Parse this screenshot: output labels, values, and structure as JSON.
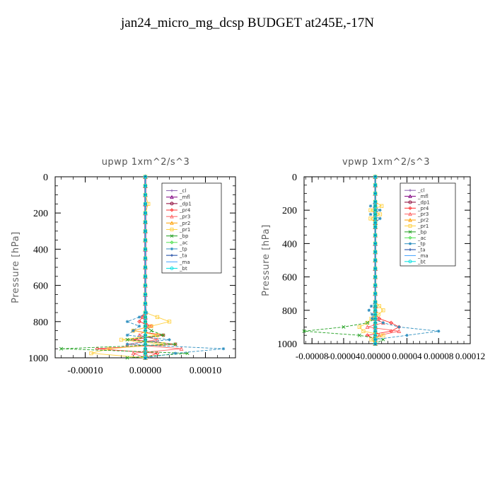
{
  "page": {
    "title": "jan24_micro_mg_dcsp  BUDGET at245E,-17N"
  },
  "chart_data": [
    {
      "type": "line",
      "title": "upwp   1xm^2/s^3",
      "xlabel": "",
      "ylabel": "Pressure [hPa]",
      "xlim": [
        -0.00015,
        0.00015
      ],
      "ylim": [
        1000,
        0
      ],
      "xticks": [
        -0.0001,
        0.0,
        0.0001
      ],
      "xtick_labels": [
        "-0.00010",
        "0.00000",
        "0.00010"
      ],
      "yticks": [
        0,
        200,
        400,
        600,
        800,
        1000
      ],
      "y": [
        0,
        50,
        100,
        150,
        200,
        250,
        300,
        350,
        400,
        450,
        500,
        550,
        600,
        650,
        700,
        750,
        775,
        800,
        825,
        850,
        875,
        900,
        925,
        950,
        975,
        1000
      ],
      "legend_position": "top-right",
      "series": [
        {
          "name": "_cl",
          "color": "#8b5fb0",
          "marker": "plus",
          "values": [
            0,
            0,
            0,
            0,
            0,
            0,
            0,
            0,
            0,
            0,
            0,
            0,
            0,
            0,
            0,
            0,
            0,
            0,
            0,
            0,
            0,
            0,
            0,
            0,
            0,
            0
          ]
        },
        {
          "name": "_mfl",
          "color": "#800080",
          "marker": "tri",
          "values": [
            0,
            0,
            0,
            0,
            0,
            0,
            0,
            0,
            0,
            0,
            0,
            0,
            0,
            0,
            0,
            0,
            0,
            0,
            0,
            0,
            0,
            0,
            0,
            0,
            0,
            0
          ]
        },
        {
          "name": "_dp1",
          "color": "#8b0033",
          "marker": "circle",
          "values": [
            0,
            0,
            0,
            0,
            0,
            0,
            0,
            0,
            0,
            0,
            0,
            0,
            0,
            0,
            0,
            0,
            0,
            0,
            0,
            0,
            0,
            0,
            0,
            0,
            0,
            0
          ]
        },
        {
          "name": "_pr4",
          "color": "#ff3030",
          "marker": "diamond",
          "values": [
            0,
            0,
            0,
            0,
            0,
            0,
            0,
            0,
            0,
            0,
            0,
            0,
            0,
            0,
            0,
            0,
            -5e-06,
            -1e-05,
            1e-05,
            -2e-05,
            3e-05,
            -2e-05,
            5e-05,
            -8e-05,
            2e-05,
            0
          ]
        },
        {
          "name": "_pr3",
          "color": "#ff6060",
          "marker": "tri",
          "values": [
            0,
            0,
            0,
            0,
            0,
            0,
            0,
            0,
            0,
            0,
            0,
            0,
            0,
            0,
            0,
            0,
            0,
            0,
            5e-06,
            0,
            -1e-05,
            2e-05,
            -3e-05,
            6e-05,
            -2e-05,
            0
          ]
        },
        {
          "name": "_pr2",
          "color": "#ffa000",
          "marker": "tri",
          "values": [
            0,
            0,
            0,
            0,
            0,
            0,
            0,
            0,
            0,
            0,
            0,
            0,
            0,
            0,
            0,
            0,
            0,
            0,
            0,
            0,
            0,
            0,
            0,
            0,
            0,
            0
          ]
        },
        {
          "name": "_pr1",
          "color": "#ffd040",
          "marker": "square",
          "values": [
            0,
            0,
            0,
            5e-06,
            0,
            0,
            0,
            0,
            0,
            0,
            0,
            0,
            0,
            0,
            0,
            0,
            2e-05,
            4e-05,
            1e-05,
            -2e-05,
            2e-05,
            -4e-05,
            3e-05,
            -6e-05,
            -9e-05,
            0
          ]
        },
        {
          "name": "_bp",
          "color": "#20a020",
          "marker": "x",
          "values": [
            0,
            0,
            0,
            0,
            0,
            0,
            0,
            0,
            0,
            0,
            0,
            0,
            0,
            0,
            0,
            0,
            0,
            0,
            0,
            1e-05,
            3e-05,
            -3e-05,
            5e-05,
            -0.00014,
            7e-05,
            -3e-05
          ]
        },
        {
          "name": "_ac",
          "color": "#50e050",
          "marker": "diamond",
          "values": [
            0,
            0,
            0,
            0,
            0,
            0,
            0,
            0,
            0,
            0,
            0,
            0,
            0,
            0,
            0,
            0,
            0,
            0,
            0,
            0,
            0,
            0,
            0,
            0,
            0,
            0
          ]
        },
        {
          "name": "_tp",
          "color": "#3090c0",
          "marker": "star",
          "values": [
            0,
            0,
            0,
            0,
            0,
            0,
            0,
            0,
            0,
            0,
            0,
            0,
            0,
            0,
            0,
            2e-06,
            -1e-05,
            -3e-05,
            -1e-05,
            -2e-05,
            -3e-05,
            4e-05,
            -3e-05,
            0.00013,
            5e-05,
            0
          ]
        },
        {
          "name": "_ta",
          "color": "#1040a0",
          "marker": "plus",
          "values": [
            0,
            0,
            0,
            0,
            0,
            0,
            0,
            0,
            0,
            0,
            0,
            0,
            0,
            0,
            0,
            0,
            0,
            0,
            0,
            0,
            0,
            0,
            0,
            0,
            0,
            0
          ]
        },
        {
          "name": "_ma",
          "color": "#40a0ff",
          "marker": "none",
          "values": [
            0,
            0,
            0,
            0,
            0,
            0,
            0,
            0,
            0,
            0,
            0,
            0,
            0,
            0,
            0,
            0,
            0,
            0,
            0,
            0,
            0,
            0,
            0,
            0,
            0,
            0
          ]
        },
        {
          "name": "_bt",
          "color": "#00e0e0",
          "marker": "circle",
          "values": [
            0,
            0,
            0,
            0,
            0,
            0,
            0,
            0,
            0,
            0,
            0,
            0,
            0,
            0,
            0,
            0,
            0,
            0,
            0,
            0,
            0,
            0,
            0,
            0,
            0,
            0
          ]
        }
      ]
    },
    {
      "type": "line",
      "title": "vpwp   1xm^2/s^3",
      "xlabel": "",
      "ylabel": "Pressure [hPa]",
      "xlim": [
        -9e-05,
        0.00012
      ],
      "ylim": [
        1000,
        0
      ],
      "xticks": [
        -8e-05,
        -4e-05,
        0.0,
        4e-05,
        8e-05,
        0.00012
      ],
      "xtick_labels": [
        "-0.00008",
        "-0.00004",
        "0.00000",
        "0.00004",
        "0.00008",
        "0.00012"
      ],
      "yticks": [
        0,
        200,
        400,
        600,
        800,
        1000
      ],
      "y": [
        0,
        50,
        100,
        150,
        175,
        200,
        225,
        250,
        275,
        300,
        350,
        400,
        450,
        500,
        550,
        600,
        650,
        700,
        750,
        775,
        800,
        825,
        850,
        875,
        900,
        925,
        950,
        975,
        1000
      ],
      "legend_position": "top-right",
      "series": [
        {
          "name": "_cl",
          "color": "#8b5fb0",
          "marker": "plus",
          "values": [
            0,
            0,
            0,
            0,
            0,
            0,
            0,
            0,
            0,
            0,
            0,
            0,
            0,
            0,
            0,
            0,
            0,
            0,
            0,
            0,
            0,
            0,
            0,
            0,
            0,
            0,
            0,
            0,
            0
          ]
        },
        {
          "name": "_mfl",
          "color": "#800080",
          "marker": "tri",
          "values": [
            0,
            0,
            0,
            0,
            0,
            0,
            0,
            0,
            0,
            0,
            0,
            0,
            0,
            0,
            0,
            0,
            0,
            0,
            0,
            0,
            0,
            0,
            0,
            0,
            0,
            0,
            0,
            0,
            0
          ]
        },
        {
          "name": "_dp1",
          "color": "#8b0033",
          "marker": "circle",
          "values": [
            0,
            0,
            0,
            0,
            0,
            0,
            0,
            0,
            0,
            0,
            0,
            0,
            0,
            0,
            0,
            0,
            0,
            0,
            0,
            0,
            0,
            0,
            0,
            0,
            0,
            0,
            0,
            0,
            0
          ]
        },
        {
          "name": "_pr4",
          "color": "#ff3030",
          "marker": "diamond",
          "values": [
            0,
            0,
            0,
            0,
            0,
            0,
            0,
            0,
            0,
            0,
            0,
            0,
            0,
            0,
            0,
            0,
            0,
            0,
            0,
            0,
            0,
            0,
            5e-06,
            2e-05,
            3e-05,
            2e-05,
            -1e-05,
            0,
            0
          ]
        },
        {
          "name": "_pr3",
          "color": "#ff6060",
          "marker": "tri",
          "values": [
            0,
            0,
            0,
            0,
            0,
            0,
            0,
            0,
            0,
            0,
            0,
            0,
            0,
            0,
            0,
            0,
            0,
            0,
            0,
            0,
            0,
            0,
            0,
            1e-05,
            -1e-05,
            3e-05,
            5e-06,
            0,
            0
          ]
        },
        {
          "name": "_pr2",
          "color": "#ffa000",
          "marker": "tri",
          "values": [
            0,
            0,
            0,
            0,
            0,
            0,
            0,
            0,
            0,
            0,
            0,
            0,
            0,
            0,
            0,
            0,
            0,
            0,
            0,
            0,
            0,
            0,
            0,
            0,
            0,
            0,
            0,
            0,
            0
          ]
        },
        {
          "name": "_pr1",
          "color": "#ffd040",
          "marker": "square",
          "values": [
            0,
            0,
            0,
            0,
            8e-06,
            -6e-06,
            6e-06,
            -6e-06,
            0,
            0,
            0,
            0,
            0,
            0,
            0,
            0,
            0,
            0,
            0,
            5e-06,
            1e-05,
            4e-06,
            -5e-06,
            -1e-05,
            -2e-05,
            -1.5e-05,
            1e-05,
            -5e-06,
            0
          ]
        },
        {
          "name": "_bp",
          "color": "#20a020",
          "marker": "x",
          "values": [
            0,
            0,
            0,
            0,
            0,
            0,
            0,
            0,
            0,
            0,
            0,
            0,
            0,
            0,
            0,
            0,
            0,
            0,
            0,
            0,
            0,
            0,
            0,
            -1e-05,
            -4e-05,
            -9e-05,
            -2e-05,
            1e-05,
            0
          ]
        },
        {
          "name": "_ac",
          "color": "#50e050",
          "marker": "diamond",
          "values": [
            0,
            0,
            0,
            0,
            0,
            0,
            0,
            0,
            0,
            0,
            0,
            0,
            0,
            0,
            0,
            0,
            0,
            0,
            0,
            0,
            0,
            0,
            0,
            0,
            0,
            0,
            0,
            0,
            0
          ]
        },
        {
          "name": "_tp",
          "color": "#3090c0",
          "marker": "star",
          "values": [
            0,
            0,
            0,
            0,
            -6e-06,
            6e-06,
            -6e-06,
            6e-06,
            0,
            0,
            0,
            0,
            0,
            0,
            0,
            0,
            0,
            0,
            0,
            -5e-06,
            -8e-06,
            -4e-06,
            -4e-06,
            1e-05,
            3e-05,
            8e-05,
            4e-05,
            0,
            0
          ]
        },
        {
          "name": "_ta",
          "color": "#1040a0",
          "marker": "plus",
          "values": [
            0,
            0,
            0,
            0,
            0,
            0,
            0,
            0,
            0,
            0,
            0,
            0,
            0,
            0,
            0,
            0,
            0,
            0,
            0,
            0,
            0,
            0,
            0,
            0,
            0,
            0,
            0,
            0,
            0
          ]
        },
        {
          "name": "_ma",
          "color": "#40a0ff",
          "marker": "none",
          "values": [
            0,
            0,
            0,
            0,
            0,
            0,
            0,
            0,
            0,
            0,
            0,
            0,
            0,
            0,
            0,
            0,
            0,
            0,
            0,
            0,
            0,
            0,
            0,
            0,
            0,
            0,
            0,
            0,
            0
          ]
        },
        {
          "name": "_bt",
          "color": "#00e0e0",
          "marker": "circle",
          "values": [
            0,
            0,
            0,
            0,
            0,
            0,
            0,
            0,
            0,
            0,
            0,
            0,
            0,
            0,
            0,
            0,
            0,
            0,
            0,
            0,
            0,
            0,
            0,
            0,
            0,
            0,
            0,
            0,
            0
          ]
        }
      ]
    }
  ]
}
